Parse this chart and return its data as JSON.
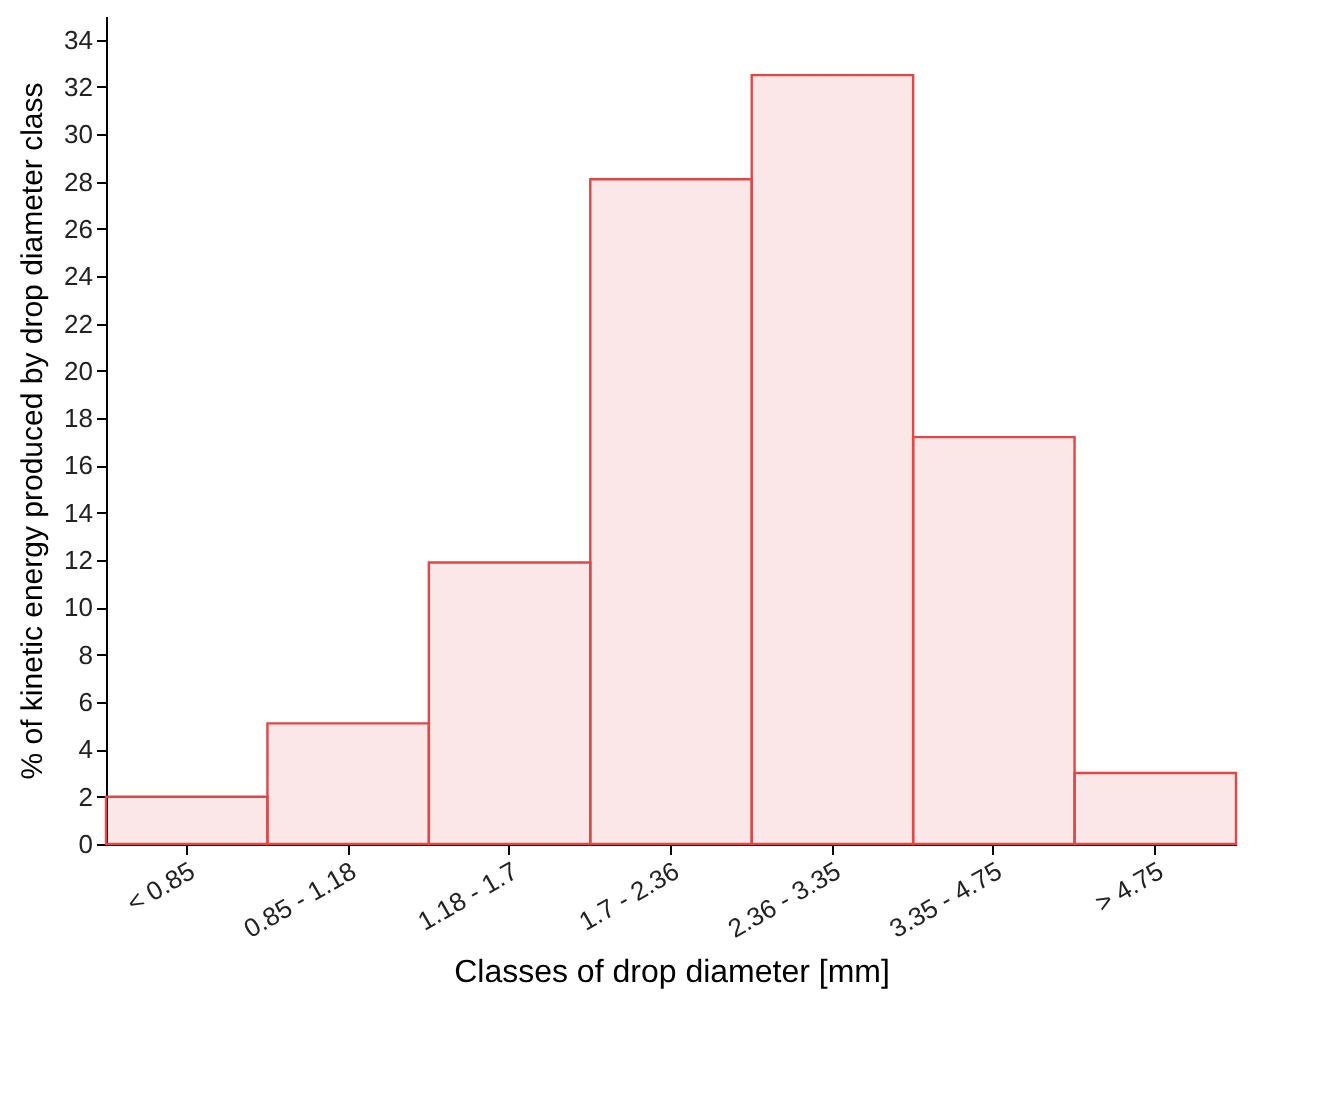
{
  "chart_data": {
    "type": "bar",
    "xlabel": "Classes of drop diameter [mm]",
    "ylabel": "% of kinetic energy produced by drop diameter class",
    "categories": [
      "< 0.85",
      "0.85 - 1.18",
      "1.18 - 1.7",
      "1.7 - 2.36",
      "2.36 - 3.35",
      "3.35 - 4.75",
      "> 4.75"
    ],
    "values": [
      2.0,
      5.1,
      11.9,
      28.1,
      32.5,
      17.2,
      3.0
    ],
    "color": "#e04848",
    "ylim": [
      0,
      35
    ],
    "yticks": [
      0,
      2,
      4,
      6,
      8,
      10,
      12,
      14,
      16,
      18,
      20,
      22,
      24,
      26,
      28,
      30,
      32,
      34
    ],
    "grid": false
  }
}
